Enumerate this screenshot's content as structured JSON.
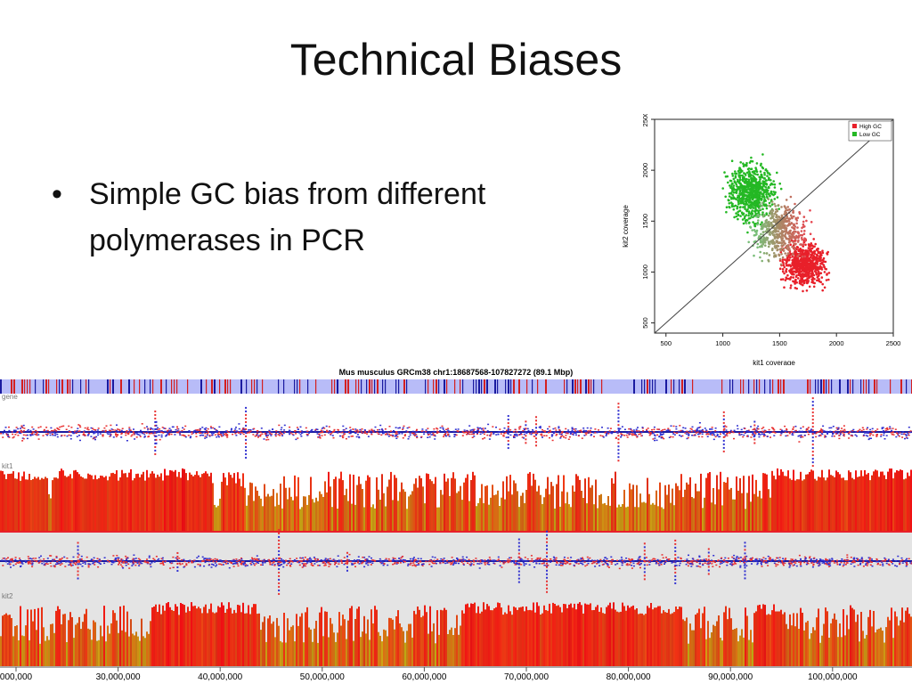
{
  "slide": {
    "title": "Technical Biases",
    "bullet": "Simple GC bias from different polymerases in PCR"
  },
  "colors": {
    "high_gc": "#e8202a",
    "low_gc": "#24b824",
    "track_band": "#b8bcf8",
    "track_bg": "#e4e4e4"
  },
  "chart_data": {
    "type": "scatter",
    "xlabel": "kit1 coverage",
    "ylabel": "kit2 coverage",
    "xticks": [
      "500",
      "1000",
      "1500",
      "2000",
      "2500"
    ],
    "yticks": [
      "500",
      "1000",
      "1500",
      "2000",
      "2500"
    ],
    "xlim": [
      400,
      2500
    ],
    "ylim": [
      400,
      2500
    ],
    "legend": {
      "position": "top-right",
      "entries": [
        "High GC",
        "Low GC"
      ]
    },
    "series": [
      {
        "name": "Low GC",
        "color": "#24b824",
        "center": [
          1250,
          1780
        ],
        "spread": [
          130,
          190
        ],
        "count": 700
      },
      {
        "name": "High GC",
        "color": "#e8202a",
        "center": [
          1720,
          1080
        ],
        "spread": [
          130,
          140
        ],
        "count": 700
      },
      {
        "name": "",
        "color": "#999999",
        "center": [
          1500,
          1400
        ],
        "spread": [
          160,
          180
        ],
        "count": 500
      }
    ],
    "reference_line": {
      "from": [
        400,
        400
      ],
      "to": [
        2500,
        2500
      ]
    }
  },
  "browser": {
    "header": "Mus musculus GRCm38 chr1:18687568-107827272 (89.1 Mbp)",
    "tracks": {
      "gene": "gene",
      "kit1": "kit1",
      "kit2": "kit2"
    },
    "axis_labels": [
      "000,000",
      "30,000,000",
      "40,000,000",
      "50,000,000",
      "60,000,000",
      "70,000,000",
      "80,000,000",
      "90,000,000",
      "100,000,000"
    ]
  }
}
